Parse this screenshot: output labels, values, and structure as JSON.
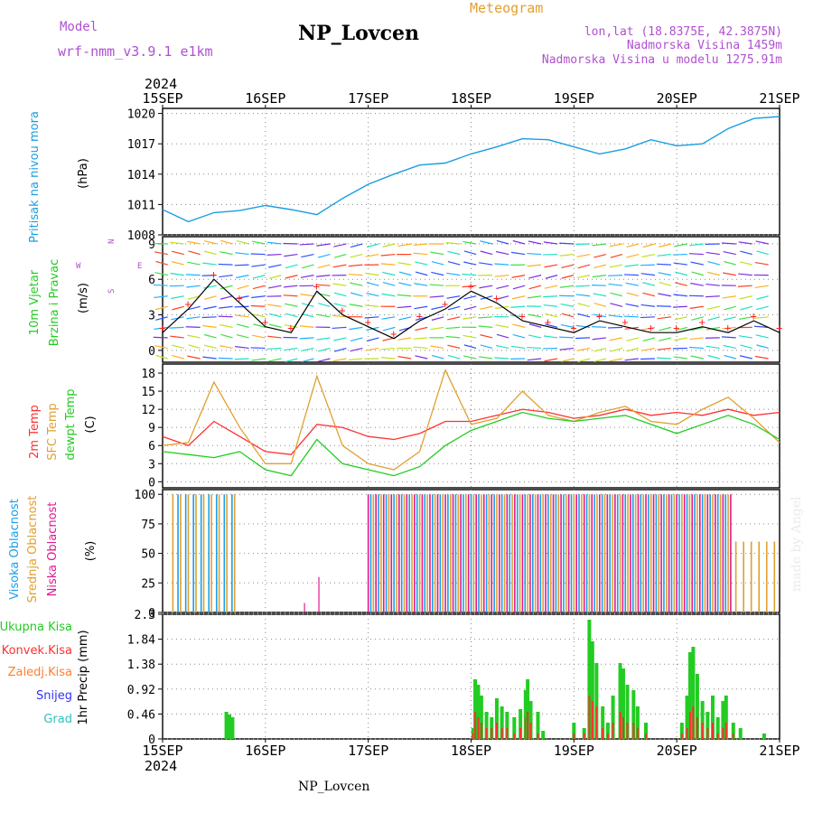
{
  "header": {
    "model_label": "Model",
    "model_name": "wrf-nmm_v3.9.1 e1km",
    "station_title": "NP_Lovcen",
    "product_label": "Meteogram",
    "lonlat": "lon,lat (18.8375E, 42.3875N)",
    "elevation": "Nadmorska Visina 1459m",
    "model_elevation": "Nadmorska Visina u modelu 1275.91m",
    "year_top": "2024",
    "year_bottom": "2024",
    "footer_station": "NP_Lovcen",
    "watermark": "made by Angel"
  },
  "colors": {
    "pressure": "#1a9ee0",
    "wind_speed": "#000000",
    "wind_gust_marker": "#ff2020",
    "temp_2m": "#ff3030",
    "temp_sfc": "#e0a030",
    "dewpoint": "#22cc22",
    "cloud_high": "#1aa0e8",
    "cloud_mid": "#e0a030",
    "cloud_low": "#e01890",
    "precip_total": "#22cc22",
    "precip_convective": "#ff3030",
    "precip_freezing": "#ff8030",
    "snow": "#3030ff",
    "hail": "#30c0c0",
    "label_purple": "#b050d0"
  },
  "chart_data": [
    {
      "panel": "pressure",
      "type": "line",
      "ylabel_main": "Pritisak na nivou mora",
      "ylabel_unit": "(hPa)",
      "x_ticks": [
        "15SEP",
        "16SEP",
        "17SEP",
        "18SEP",
        "19SEP",
        "20SEP",
        "21SEP"
      ],
      "y_ticks": [
        "1008",
        "1011",
        "1014",
        "1017",
        "1020"
      ],
      "ylim": [
        1008,
        1020.5
      ],
      "grid": true,
      "x_days": [
        0.0,
        0.25,
        0.5,
        0.75,
        1.0,
        1.25,
        1.5,
        1.75,
        2.0,
        2.25,
        2.5,
        2.75,
        3.0,
        3.25,
        3.5,
        3.75,
        4.0,
        4.25,
        4.5,
        4.75,
        5.0,
        5.25,
        5.5,
        5.75,
        6.0
      ],
      "values": [
        1010.5,
        1009.3,
        1010.2,
        1010.4,
        1010.9,
        1010.5,
        1010.0,
        1011.6,
        1013.0,
        1014.0,
        1014.9,
        1015.1,
        1016.0,
        1016.7,
        1017.5,
        1017.4,
        1016.7,
        1016.0,
        1016.5,
        1017.4,
        1016.8,
        1017.0,
        1018.5,
        1019.5,
        1019.7
      ]
    },
    {
      "panel": "wind",
      "type": "line",
      "ylabel_main": "10m Vjetar",
      "ylabel_sub": "Brzina i Pravac",
      "ylabel_unit": "(m/s)",
      "compass_labels": [
        "W",
        "E",
        "N",
        "S"
      ],
      "y_ticks": [
        "0",
        "3",
        "6",
        "9"
      ],
      "ylim": [
        -1,
        9.6
      ],
      "grid": true,
      "x_days": [
        0.0,
        0.25,
        0.5,
        0.75,
        1.0,
        1.25,
        1.5,
        1.75,
        2.0,
        2.25,
        2.5,
        2.75,
        3.0,
        3.25,
        3.5,
        3.75,
        4.0,
        4.25,
        4.5,
        4.75,
        5.0,
        5.25,
        5.5,
        5.75,
        6.0
      ],
      "values": [
        1.5,
        3.5,
        6.0,
        4.0,
        2.0,
        1.5,
        5.0,
        3.0,
        2.0,
        1.0,
        2.5,
        3.5,
        5.0,
        4.0,
        2.5,
        2.0,
        1.5,
        2.5,
        2.0,
        1.5,
        1.5,
        2.0,
        1.5,
        2.5,
        1.5
      ]
    },
    {
      "panel": "temperature",
      "type": "line",
      "ylabel_series": [
        "2m Temp",
        "SFC Temp",
        "dewpt Temp"
      ],
      "ylabel_unit": "(C)",
      "y_ticks": [
        "0",
        "3",
        "6",
        "9",
        "12",
        "15",
        "18"
      ],
      "ylim": [
        -1,
        19.5
      ],
      "grid": true,
      "x_days": [
        0.0,
        0.25,
        0.5,
        0.75,
        1.0,
        1.25,
        1.5,
        1.75,
        2.0,
        2.25,
        2.5,
        2.75,
        3.0,
        3.25,
        3.5,
        3.75,
        4.0,
        4.25,
        4.5,
        4.75,
        5.0,
        5.25,
        5.5,
        5.75,
        6.0
      ],
      "series": [
        {
          "key": "temp_2m",
          "values": [
            7.5,
            6.0,
            10.0,
            7.5,
            5.0,
            4.5,
            9.5,
            9.0,
            7.5,
            7.0,
            8.0,
            10.0,
            10.0,
            11.0,
            12.0,
            11.5,
            10.5,
            11.0,
            12.0,
            11.0,
            11.5,
            11.0,
            12.0,
            11.0,
            11.5
          ]
        },
        {
          "key": "temp_sfc",
          "values": [
            6.0,
            6.5,
            16.5,
            9.0,
            3.0,
            3.0,
            17.5,
            6.0,
            3.0,
            2.0,
            5.0,
            18.5,
            9.5,
            10.5,
            15.0,
            11.0,
            10.0,
            11.5,
            12.5,
            10.0,
            9.5,
            12.0,
            14.0,
            10.5,
            6.5
          ]
        },
        {
          "key": "dewpoint",
          "values": [
            5.0,
            4.5,
            4.0,
            5.0,
            2.0,
            1.0,
            7.0,
            3.0,
            2.0,
            1.0,
            2.5,
            6.0,
            8.5,
            10.0,
            11.5,
            10.5,
            10.0,
            10.5,
            11.0,
            9.5,
            8.0,
            9.5,
            11.0,
            9.5,
            7.0
          ]
        }
      ]
    },
    {
      "panel": "cloud",
      "type": "bar",
      "ylabel_series": [
        "Visoka Oblacnost",
        "Srednja Oblacnost",
        "Niska Oblacnost"
      ],
      "ylabel_unit": "(%)",
      "y_ticks": [
        "0",
        "25",
        "50",
        "75",
        "100"
      ],
      "ylim": [
        0,
        104
      ],
      "grid": true,
      "segments": [
        {
          "from_day": 0.1,
          "to_day": 0.75,
          "high": 100,
          "mid": 100,
          "low": 0
        },
        {
          "from_day": 0.75,
          "to_day": 2.0,
          "high": 0,
          "mid": 0,
          "low": 0
        },
        {
          "from_day": 2.0,
          "to_day": 5.55,
          "high": 100,
          "mid": 100,
          "low": 100
        },
        {
          "from_day": 5.55,
          "to_day": 6.0,
          "high": 0,
          "mid": 60,
          "low": 0
        }
      ],
      "spikes": [
        {
          "day": 1.52,
          "mid": 30
        },
        {
          "day": 1.38,
          "mid": 8
        }
      ]
    },
    {
      "panel": "precip",
      "type": "bar",
      "ylabel_series": [
        "Ukupna Kisa",
        "Konvek.Kisa",
        "Zaledj.Kisa",
        "Snijeg",
        "Grad"
      ],
      "ylabel_unit": "1hr Precip (mm)",
      "y_ticks": [
        "0",
        "0.46",
        "0.92",
        "1.38",
        "1.84",
        "2.3"
      ],
      "ylim": [
        0,
        2.3
      ],
      "grid": true,
      "bars": [
        {
          "day": 0.62,
          "total": 0.5,
          "conv": 0.0
        },
        {
          "day": 0.65,
          "total": 0.45,
          "conv": 0.0
        },
        {
          "day": 0.68,
          "total": 0.4,
          "conv": 0.0
        },
        {
          "day": 3.02,
          "total": 0.2,
          "conv": 0.1
        },
        {
          "day": 3.04,
          "total": 1.1,
          "conv": 0.5
        },
        {
          "day": 3.07,
          "total": 1.0,
          "conv": 0.4
        },
        {
          "day": 3.1,
          "total": 0.8,
          "conv": 0.3
        },
        {
          "day": 3.15,
          "total": 0.5,
          "conv": 0.2
        },
        {
          "day": 3.2,
          "total": 0.4,
          "conv": 0.2
        },
        {
          "day": 3.25,
          "total": 0.75,
          "conv": 0.3
        },
        {
          "day": 3.3,
          "total": 0.6,
          "conv": 0.2
        },
        {
          "day": 3.35,
          "total": 0.5,
          "conv": 0.2
        },
        {
          "day": 3.42,
          "total": 0.4,
          "conv": 0.1
        },
        {
          "day": 3.48,
          "total": 0.55,
          "conv": 0.2
        },
        {
          "day": 3.53,
          "total": 0.9,
          "conv": 0.4
        },
        {
          "day": 3.55,
          "total": 1.1,
          "conv": 0.5
        },
        {
          "day": 3.58,
          "total": 0.7,
          "conv": 0.3
        },
        {
          "day": 3.65,
          "total": 0.5,
          "conv": 0.1
        },
        {
          "day": 3.7,
          "total": 0.15,
          "conv": 0.0
        },
        {
          "day": 4.0,
          "total": 0.3,
          "conv": 0.1
        },
        {
          "day": 4.1,
          "total": 0.2,
          "conv": 0.1
        },
        {
          "day": 4.15,
          "total": 2.2,
          "conv": 0.8
        },
        {
          "day": 4.18,
          "total": 1.8,
          "conv": 0.7
        },
        {
          "day": 4.22,
          "total": 1.4,
          "conv": 0.6
        },
        {
          "day": 4.28,
          "total": 0.6,
          "conv": 0.2
        },
        {
          "day": 4.33,
          "total": 0.3,
          "conv": 0.1
        },
        {
          "day": 4.38,
          "total": 0.8,
          "conv": 0.3
        },
        {
          "day": 4.45,
          "total": 1.4,
          "conv": 0.5
        },
        {
          "day": 4.48,
          "total": 1.3,
          "conv": 0.4
        },
        {
          "day": 4.52,
          "total": 1.0,
          "conv": 0.3
        },
        {
          "day": 4.58,
          "total": 0.9,
          "conv": 0.3
        },
        {
          "day": 4.62,
          "total": 0.6,
          "conv": 0.2
        },
        {
          "day": 4.7,
          "total": 0.3,
          "conv": 0.1
        },
        {
          "day": 5.05,
          "total": 0.3,
          "conv": 0.1
        },
        {
          "day": 5.1,
          "total": 0.8,
          "conv": 0.2
        },
        {
          "day": 5.13,
          "total": 1.6,
          "conv": 0.5
        },
        {
          "day": 5.16,
          "total": 1.7,
          "conv": 0.6
        },
        {
          "day": 5.2,
          "total": 1.2,
          "conv": 0.4
        },
        {
          "day": 5.25,
          "total": 0.7,
          "conv": 0.3
        },
        {
          "day": 5.3,
          "total": 0.5,
          "conv": 0.2
        },
        {
          "day": 5.35,
          "total": 0.8,
          "conv": 0.3
        },
        {
          "day": 5.4,
          "total": 0.4,
          "conv": 0.1
        },
        {
          "day": 5.45,
          "total": 0.7,
          "conv": 0.2
        },
        {
          "day": 5.48,
          "total": 0.8,
          "conv": 0.3
        },
        {
          "day": 5.55,
          "total": 0.3,
          "conv": 0.1
        },
        {
          "day": 5.62,
          "total": 0.2,
          "conv": 0.0
        },
        {
          "day": 5.85,
          "total": 0.1,
          "conv": 0.0
        }
      ]
    }
  ]
}
